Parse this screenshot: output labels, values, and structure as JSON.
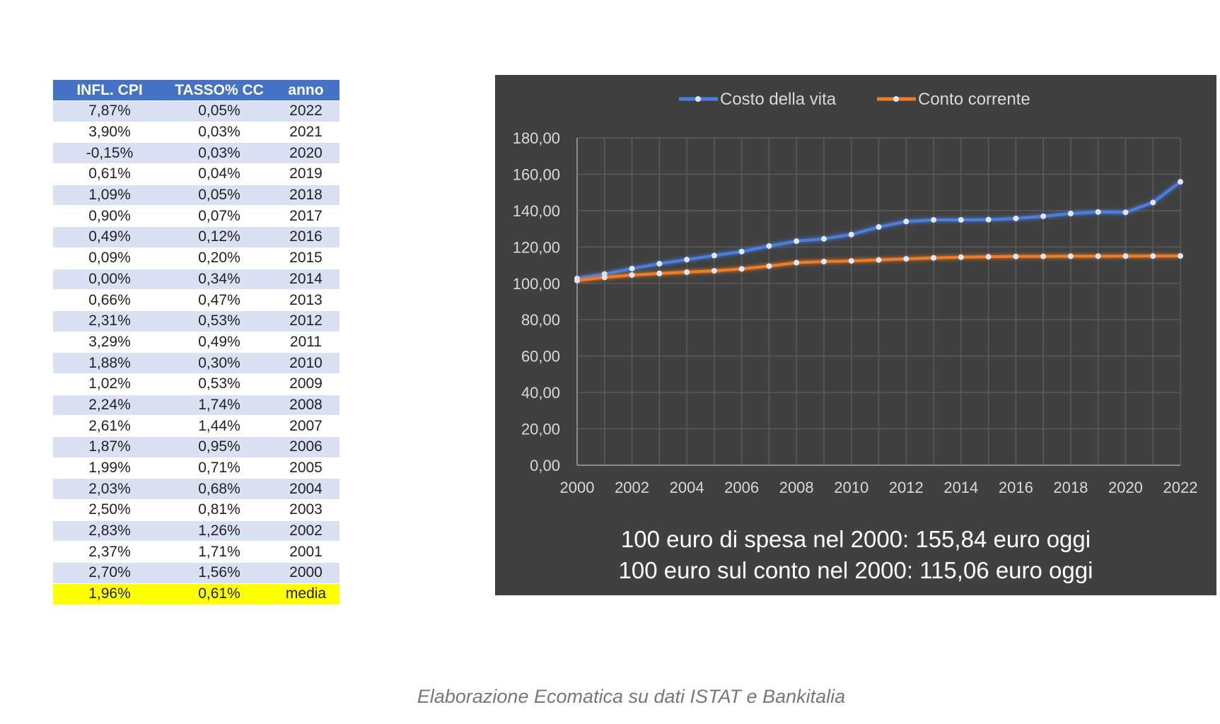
{
  "table": {
    "headers": [
      "INFL. CPI",
      "TASSO% CC",
      "anno"
    ],
    "rows": [
      [
        "7,87%",
        "0,05%",
        "2022"
      ],
      [
        "3,90%",
        "0,03%",
        "2021"
      ],
      [
        "-0,15%",
        "0,03%",
        "2020"
      ],
      [
        "0,61%",
        "0,04%",
        "2019"
      ],
      [
        "1,09%",
        "0,05%",
        "2018"
      ],
      [
        "0,90%",
        "0,07%",
        "2017"
      ],
      [
        "0,49%",
        "0,12%",
        "2016"
      ],
      [
        "0,09%",
        "0,20%",
        "2015"
      ],
      [
        "0,00%",
        "0,34%",
        "2014"
      ],
      [
        "0,66%",
        "0,47%",
        "2013"
      ],
      [
        "2,31%",
        "0,53%",
        "2012"
      ],
      [
        "3,29%",
        "0,49%",
        "2011"
      ],
      [
        "1,88%",
        "0,30%",
        "2010"
      ],
      [
        "1,02%",
        "0,53%",
        "2009"
      ],
      [
        "2,24%",
        "1,74%",
        "2008"
      ],
      [
        "2,61%",
        "1,44%",
        "2007"
      ],
      [
        "1,87%",
        "0,95%",
        "2006"
      ],
      [
        "1,99%",
        "0,71%",
        "2005"
      ],
      [
        "2,03%",
        "0,68%",
        "2004"
      ],
      [
        "2,50%",
        "0,81%",
        "2003"
      ],
      [
        "2,83%",
        "1,26%",
        "2002"
      ],
      [
        "2,37%",
        "1,71%",
        "2001"
      ],
      [
        "2,70%",
        "1,56%",
        "2000"
      ]
    ],
    "average": [
      "1,96%",
      "0,61%",
      "media"
    ],
    "header_color": "#4472c4",
    "stripe_color": "#d9e1f2",
    "average_color": "#ffff00"
  },
  "chart_data": {
    "type": "line",
    "x": [
      2000,
      2001,
      2002,
      2003,
      2004,
      2005,
      2006,
      2007,
      2008,
      2009,
      2010,
      2011,
      2012,
      2013,
      2014,
      2015,
      2016,
      2017,
      2018,
      2019,
      2020,
      2021,
      2022
    ],
    "series": [
      {
        "name": "Costo della vita",
        "color": "#4a7fe0",
        "values": [
          102.7,
          105.13,
          108.11,
          110.81,
          113.06,
          115.31,
          117.47,
          120.53,
          123.23,
          124.49,
          126.83,
          131.0,
          134.03,
          134.91,
          134.91,
          135.03,
          135.69,
          136.91,
          138.4,
          139.25,
          139.04,
          144.46,
          155.84
        ]
      },
      {
        "name": "Conto corrente",
        "color": "#f07c28",
        "values": [
          101.56,
          103.3,
          104.6,
          105.45,
          106.17,
          106.92,
          107.94,
          109.49,
          111.4,
          111.99,
          112.33,
          112.88,
          113.48,
          114.01,
          114.4,
          114.63,
          114.77,
          114.85,
          114.91,
          114.95,
          114.99,
          115.02,
          115.06
        ]
      }
    ],
    "ylim": [
      0,
      180
    ],
    "y_ticks": [
      "0,00",
      "20,00",
      "40,00",
      "60,00",
      "80,00",
      "100,00",
      "120,00",
      "140,00",
      "160,00",
      "180,00"
    ],
    "x_ticks": [
      "2000",
      "2002",
      "2004",
      "2006",
      "2008",
      "2010",
      "2012",
      "2014",
      "2016",
      "2018",
      "2020",
      "2022"
    ],
    "grid": true,
    "legend_position": "top",
    "background": "#404040"
  },
  "summary": {
    "line1": "100 euro di spesa nel 2000: 155,84 euro oggi",
    "line2": "100 euro sul conto nel 2000: 115,06 euro oggi"
  },
  "caption": "Elaborazione Ecomatica su dati ISTAT e Bankitalia"
}
